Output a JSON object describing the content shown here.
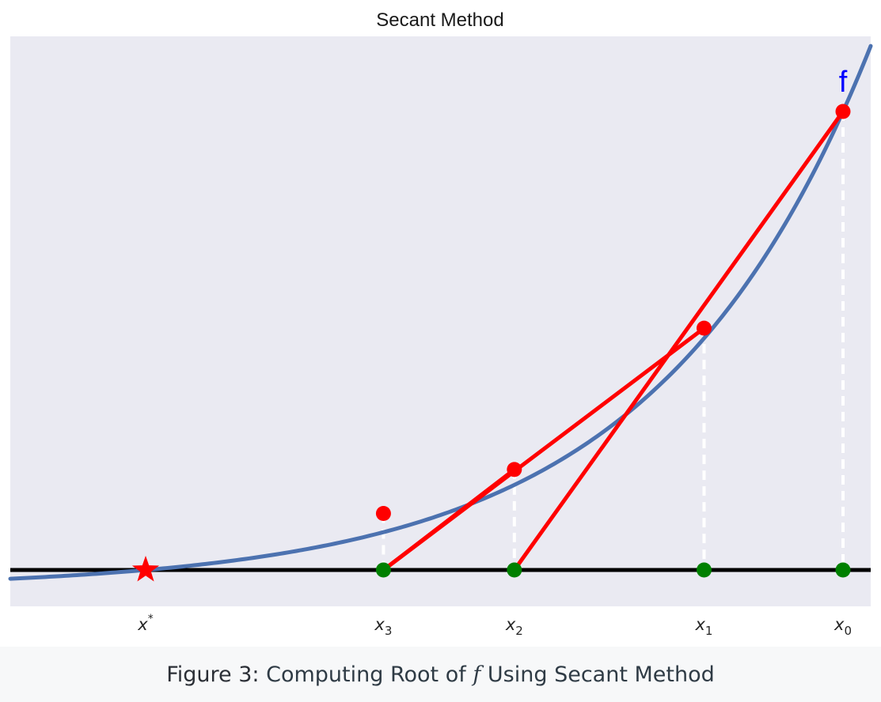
{
  "figure": {
    "title": "Secant Method",
    "curve_label": "f",
    "caption": {
      "label": "Figure 3:",
      "text_before": "Computing Root of",
      "math": "f",
      "text_after": "Using Secant Method"
    },
    "colors": {
      "plot_background": "#eaeaf2",
      "curve": "#4c72b0",
      "secant": "#ff0000",
      "curve_point": "#ff0000",
      "axis_point": "#008000",
      "axis_line": "#000000",
      "guide": "#ffffff",
      "root_star": "#ff0000",
      "curve_label": "#0000ff"
    },
    "ticks": [
      {
        "name": "x-star",
        "base": "x",
        "sup": "*",
        "sub": "",
        "x": -0.5
      },
      {
        "name": "x3",
        "base": "x",
        "sup": "",
        "sub": "3",
        "x": 1.28
      },
      {
        "name": "x2",
        "base": "x",
        "sup": "",
        "sub": "2",
        "x": 2.26
      },
      {
        "name": "x1",
        "base": "x",
        "sup": "",
        "sub": "1",
        "x": 3.68
      },
      {
        "name": "x0",
        "base": "x",
        "sup": "",
        "sub": "0",
        "x": 4.72
      }
    ],
    "iterates": [
      {
        "name": "x0",
        "x": 4.72,
        "fx": 14.6
      },
      {
        "name": "x1",
        "x": 3.68,
        "fx": 7.7
      },
      {
        "name": "x2",
        "x": 2.26,
        "fx": 3.2
      },
      {
        "name": "x3",
        "x": 1.28,
        "fx": 1.8
      }
    ],
    "secants": [
      {
        "name": "secant-x0-x1",
        "from": {
          "x": 4.72,
          "y": 14.6
        },
        "to": {
          "x": 2.26,
          "y": 0
        }
      },
      {
        "name": "secant-x1-x2",
        "from": {
          "x": 3.68,
          "y": 7.7
        },
        "to": {
          "x": 1.28,
          "y": 0
        }
      }
    ],
    "root": {
      "x": -0.5,
      "y": 0
    }
  }
}
